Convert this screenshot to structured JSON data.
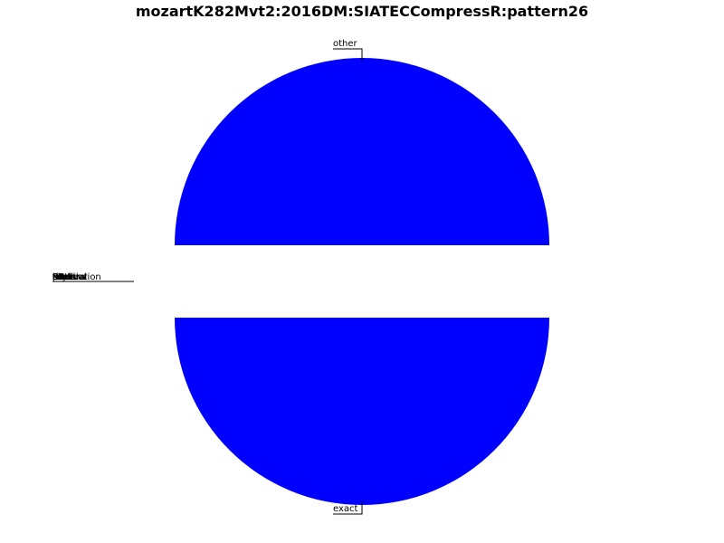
{
  "chart_data": {
    "type": "pie",
    "title": "mozartK282Mvt2:2016DM:SIATECCompressR:pattern26",
    "slices": [
      {
        "label": "other",
        "value": 50,
        "color": "#0000ff",
        "exploded": true
      },
      {
        "label": "exact",
        "value": 50,
        "color": "#0000ff",
        "exploded": true
      }
    ],
    "zero_slices": [
      {
        "label": "translation"
      },
      {
        "label": "R"
      },
      {
        "label": "I"
      },
      {
        "label": "RI"
      },
      {
        "label": "ST"
      },
      {
        "label": "SR"
      },
      {
        "label": "SI"
      },
      {
        "label": "SRI"
      },
      {
        "label": "time"
      },
      {
        "label": "rhythm"
      },
      {
        "label": "pitch"
      },
      {
        "label": "contour"
      },
      {
        "label": "scale"
      },
      {
        "label": "interval"
      },
      {
        "label": "tonal"
      }
    ]
  }
}
